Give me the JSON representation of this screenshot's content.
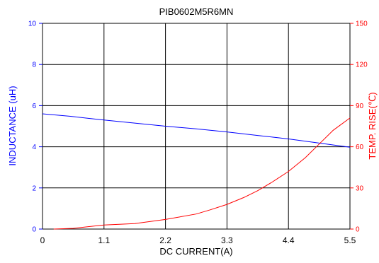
{
  "chart_data": {
    "type": "line",
    "title": "PIB0602M5R6MN",
    "xlabel": "DC CURRENT(A)",
    "ylabel_left": "INDUCTANCE (uH)",
    "ylabel_right": "TEMP. RISE(℃)",
    "xlim": [
      0,
      5.5
    ],
    "xticks": [
      0,
      1.1,
      2.2,
      3.3,
      4.4,
      5.5
    ],
    "xtick_labels": [
      "0",
      "1.1",
      "2.2",
      "3.3",
      "4.4",
      "5.5"
    ],
    "ylim_left": [
      0,
      10
    ],
    "yticks_left": [
      0,
      2,
      4,
      6,
      8,
      10
    ],
    "ytick_labels_left": [
      "0",
      "2",
      "4",
      "6",
      "8",
      "10"
    ],
    "ylim_right": [
      0,
      150
    ],
    "yticks_right": [
      0,
      30,
      60,
      90,
      120,
      150
    ],
    "ytick_labels_right": [
      "0",
      "30",
      "60",
      "90",
      "120",
      "150"
    ],
    "grid": true,
    "left_axis_color": "#0000ff",
    "right_axis_color": "#ff0000",
    "series": [
      {
        "axis": "left",
        "color": "#0000ff",
        "x": [
          0,
          0.5,
          1.1,
          1.65,
          2.2,
          2.75,
          3.3,
          3.85,
          4.4,
          4.95,
          5.5
        ],
        "y": [
          5.6,
          5.48,
          5.3,
          5.15,
          5.0,
          4.87,
          4.72,
          4.55,
          4.38,
          4.18,
          3.98
        ]
      },
      {
        "axis": "right",
        "color": "#ff0000",
        "x": [
          0.2,
          0.55,
          1.1,
          1.65,
          2.2,
          2.75,
          3.0,
          3.3,
          3.6,
          3.85,
          4.1,
          4.4,
          4.7,
          4.95,
          5.2,
          5.5
        ],
        "y": [
          0,
          0.5,
          3,
          4,
          7,
          11,
          14,
          18,
          23,
          28,
          34,
          42,
          52,
          62,
          72,
          81
        ]
      }
    ]
  }
}
